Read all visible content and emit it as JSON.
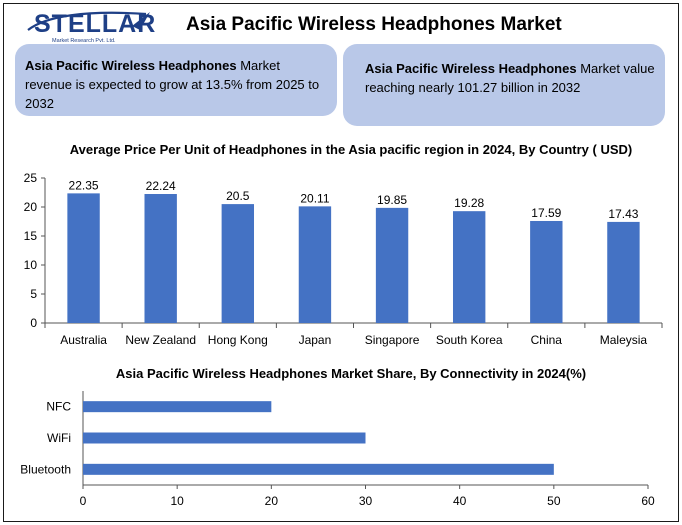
{
  "brand": {
    "name": "STELLAR",
    "tagline": "Market Research Pvt. Ltd."
  },
  "title": "Asia Pacific Wireless Headphones Market",
  "highlights": [
    {
      "bold": "Asia Pacific Wireless Headphones",
      "rest": " Market revenue is expected to grow at 13.5% from 2025 to 2032"
    },
    {
      "bold": "Asia Pacific Wireless Headphones",
      "rest": " Market value reaching nearly 101.27 billion in 2032"
    }
  ],
  "colors": {
    "bar": "#4472c4",
    "box": "#b9c8e8",
    "brand": "#1e3f86"
  },
  "chart_data": [
    {
      "type": "bar",
      "title": "Average Price Per Unit of Headphones in the Asia pacific region in 2024, By Country ( USD)",
      "categories": [
        "Australia",
        "New Zealand",
        "Hong Kong",
        "Japan",
        "Singapore",
        "South Korea",
        "China",
        "Maleysia"
      ],
      "values": [
        22.35,
        22.24,
        20.5,
        20.11,
        19.85,
        19.28,
        17.59,
        17.43
      ],
      "value_labels": [
        "22.35",
        "22.24",
        "20.5",
        "20.11",
        "19.85",
        "19.28",
        "17.59",
        "17.43"
      ],
      "ylim": [
        0,
        25
      ],
      "yticks": [
        0,
        5,
        10,
        15,
        20,
        25
      ],
      "grid": false,
      "legend": "none"
    },
    {
      "type": "bar",
      "orientation": "horizontal",
      "title": "Asia Pacific Wireless Headphones Market Share, By Connectivity in 2024(%)",
      "categories": [
        "NFC",
        "WiFi",
        "Bluetooth"
      ],
      "values": [
        20,
        30,
        50
      ],
      "xlim": [
        0,
        60
      ],
      "xticks": [
        0,
        10,
        20,
        30,
        40,
        50,
        60
      ],
      "grid": false,
      "legend": "none"
    }
  ]
}
